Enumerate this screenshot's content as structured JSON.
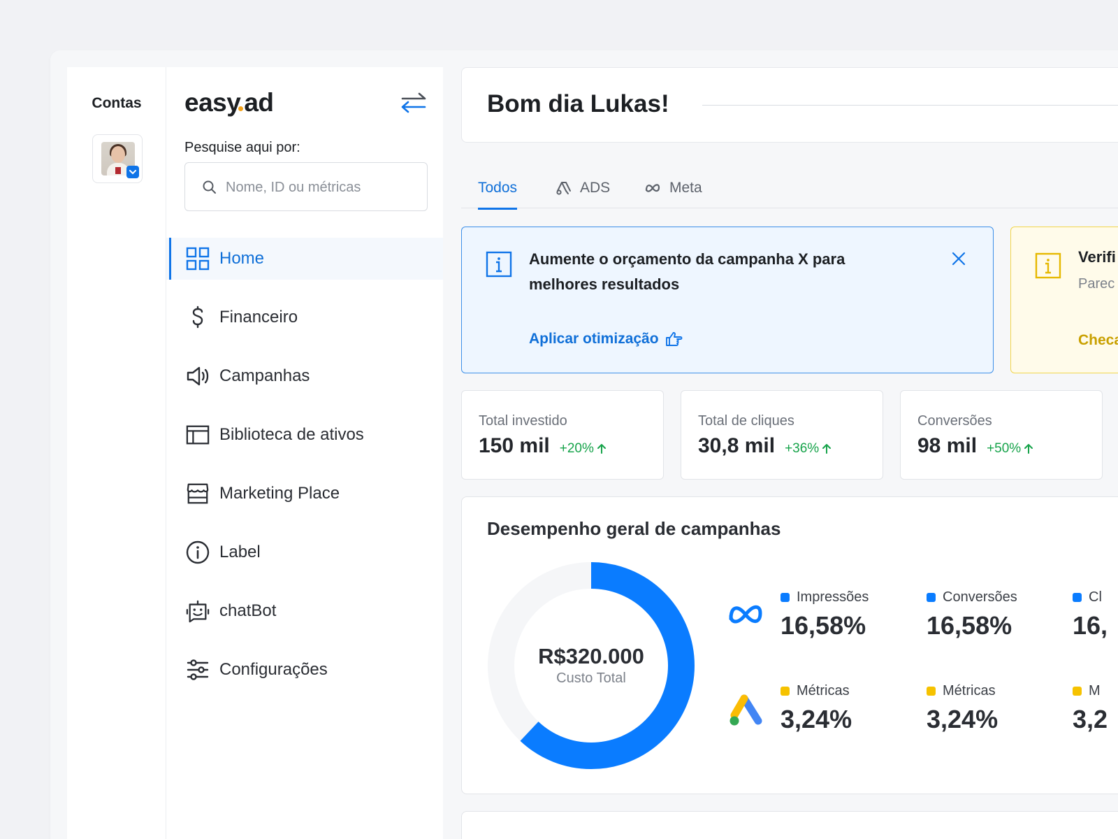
{
  "accounts": {
    "title": "Contas",
    "avatar_icon": "meta-verified-account"
  },
  "sidebar": {
    "logo": {
      "left": "easy",
      "right": "ad"
    },
    "search_label": "Pesquise aqui por:",
    "search_placeholder": "Nome, ID ou métricas",
    "items": [
      {
        "label": "Home",
        "icon": "grid-icon",
        "active": true
      },
      {
        "label": "Financeiro",
        "icon": "dollar-icon"
      },
      {
        "label": "Campanhas",
        "icon": "megaphone-icon"
      },
      {
        "label": "Biblioteca de ativos",
        "icon": "library-icon"
      },
      {
        "label": "Marketing Place",
        "icon": "store-icon"
      },
      {
        "label": "Label",
        "icon": "info-circle-icon"
      },
      {
        "label": "chatBot",
        "icon": "bot-icon"
      },
      {
        "label": "Configurações",
        "icon": "sliders-icon"
      }
    ]
  },
  "header": {
    "greeting": "Bom dia Lukas!"
  },
  "tabs": [
    {
      "label": "Todos",
      "active": true
    },
    {
      "label": "ADS",
      "icon": "google-ads-icon"
    },
    {
      "label": "Meta",
      "icon": "meta-icon"
    }
  ],
  "alerts": [
    {
      "text": "Aumente o orçamento da campanha X para melhores resultados",
      "action": "Aplicar otimização",
      "color": "#0f74e8"
    },
    {
      "title": "Verifi",
      "subtitle": "Parec",
      "action": "Checa",
      "color": "#f1d54a"
    }
  ],
  "stats": [
    {
      "label": "Total investido",
      "value": "150 mil",
      "delta": "+20%"
    },
    {
      "label": "Total de cliques",
      "value": "30,8 mil",
      "delta": "+36%"
    },
    {
      "label": "Conversões",
      "value": "98 mil",
      "delta": "+50%"
    }
  ],
  "performance": {
    "title": "Desempenho geral de campanhas",
    "total_value": "R$320.000",
    "total_caption": "Custo Total",
    "donut_fraction": 0.62,
    "colors": {
      "meta": "#0a7cff",
      "ads": "#f6c200",
      "track": "#f5f6f8"
    },
    "meta_metrics": [
      {
        "label": "Impressões",
        "value": "16,58%"
      },
      {
        "label": "Conversões",
        "value": "16,58%"
      },
      {
        "label": "Cl",
        "value": "16,"
      }
    ],
    "ads_metrics": [
      {
        "label": "Métricas",
        "value": "3,24%"
      },
      {
        "label": "Métricas",
        "value": "3,24%"
      },
      {
        "label": "M",
        "value": "3,2"
      }
    ]
  }
}
